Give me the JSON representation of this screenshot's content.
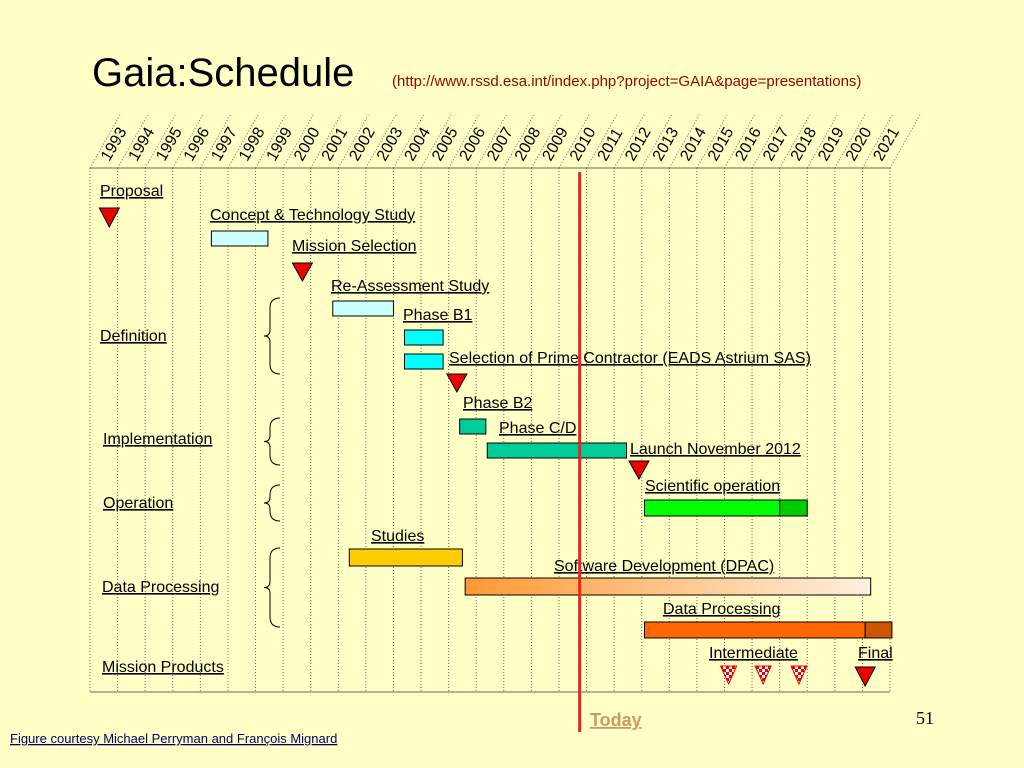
{
  "chart_data": {
    "type": "gantt",
    "title": "Gaia:Schedule",
    "subtitle": "(http://www.rssd.esa.int/index.php?project=GAIA&page=presentations)",
    "categories": [
      "1993",
      "1994",
      "1995",
      "1996",
      "1997",
      "1998",
      "1999",
      "2000",
      "2001",
      "2002",
      "2003",
      "2004",
      "2005",
      "2006",
      "2007",
      "2008",
      "2009",
      "2010",
      "2011",
      "2012",
      "2013",
      "2014",
      "2015",
      "2016",
      "2017",
      "2018",
      "2019",
      "2020",
      "2021"
    ],
    "xlim": [
      1993,
      2022
    ],
    "groups": [
      "Proposal",
      "Definition",
      "Implementation ",
      "Operation",
      "Data Processing",
      "Mission Products"
    ],
    "items": [
      {
        "at": 1993.7,
        "color": "#ee0000"
      },
      {
        "name": "Concept & Technology Study",
        "start": 1997.4,
        "end": 1999.45,
        "color": "#ccffff"
      },
      {
        "name": "Mission Selection",
        "at": 2000.7,
        "color": "#ee0000"
      },
      {
        "name": "Re-Assessment Study",
        "start": 2001.8,
        "end": 2004.0,
        "color": "#ccffff"
      },
      {
        "name": "Phase B1",
        "start": 2004.4,
        "end": 2005.8,
        "color": "#00ffff"
      },
      {
        "start": 2004.4,
        "end": 2005.8,
        "color": "#00ffff"
      },
      {
        "name": "Selection of Prime Contractor (EADS Astrium SAS)",
        "at": 2006.3,
        "color": "#ee0000"
      },
      {
        "name": "Phase B2",
        "start": 2006.4,
        "end": 2007.35,
        "color": "#00cc99"
      },
      {
        "name": "Phase C/D",
        "start": 2007.4,
        "end": 2012.45,
        "color": "#00cc99"
      },
      {
        "name": "Launch November 2012",
        "at": 2012.9,
        "color": "#ee0000"
      },
      {
        "name": "Scientific operation",
        "start": 2013.1,
        "end": 2018.0,
        "color": "#00ff00"
      },
      {
        "start": 2018.0,
        "end": 2019.0,
        "color": "#00cc00"
      },
      {
        "name": "Studies",
        "start": 2002.4,
        "end": 2006.5,
        "color": "#ffcc00"
      },
      {
        "name": "Software Development (DPAC) ",
        "start": 2006.6,
        "end": 2021.3,
        "color": "#ff9933"
      },
      {
        "name": "Data Processing",
        "start": 2013.1,
        "end": 2021.1,
        "color": "#ff6600"
      },
      {
        "start": 2021.1,
        "end": 2022.07,
        "color": "#cc5500"
      },
      {
        "name": "Intermediate",
        "at": 2016.15,
        "color": "#ee0000",
        "pattern": "checkered"
      },
      {
        "at": 2017.4,
        "color": "#ee0000",
        "pattern": "checkered"
      },
      {
        "at": 2018.7,
        "color": "#ee0000",
        "pattern": "checkered"
      },
      {
        "name": "Final",
        "at": 2021.1,
        "color": "#ee0000"
      }
    ],
    "today": 2010.75,
    "today_label": "Today",
    "today_color": "#ee2222",
    "page_number": "51",
    "footer": "Figure courtesy Michael Perryman and François Mignard"
  }
}
